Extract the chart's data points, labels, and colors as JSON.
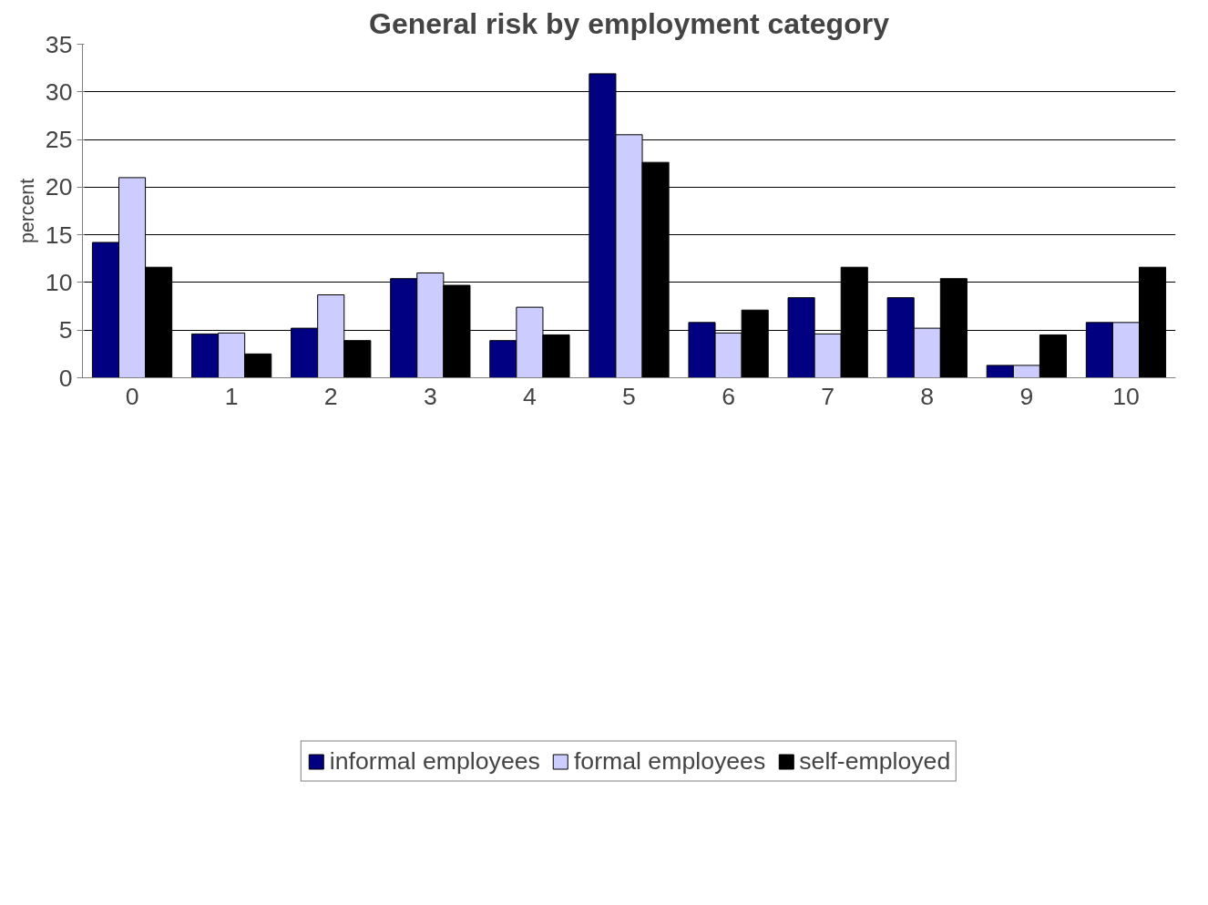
{
  "chart_data": {
    "type": "bar",
    "title": "General risk by employment category",
    "ylabel": "percent",
    "categories": [
      "0",
      "1",
      "2",
      "3",
      "4",
      "5",
      "6",
      "7",
      "8",
      "9",
      "10"
    ],
    "series": [
      {
        "name": "informal employees",
        "color": "#000080",
        "values": [
          14.2,
          4.6,
          5.2,
          10.4,
          3.9,
          31.9,
          5.8,
          8.4,
          8.4,
          1.3,
          5.8
        ]
      },
      {
        "name": "formal employees",
        "color": "#ccccff",
        "values": [
          21.0,
          4.7,
          8.7,
          11.0,
          7.4,
          25.5,
          4.7,
          4.6,
          5.2,
          1.3,
          5.8
        ]
      },
      {
        "name": "self-employed",
        "color": "#000000",
        "values": [
          11.6,
          2.5,
          3.9,
          9.7,
          4.5,
          22.6,
          7.1,
          11.6,
          10.4,
          4.5,
          11.6
        ]
      }
    ],
    "ylim": [
      0,
      35
    ],
    "yticks": [
      0,
      5,
      10,
      15,
      20,
      25,
      30,
      35
    ],
    "grid": "y",
    "legend": "bottom"
  }
}
